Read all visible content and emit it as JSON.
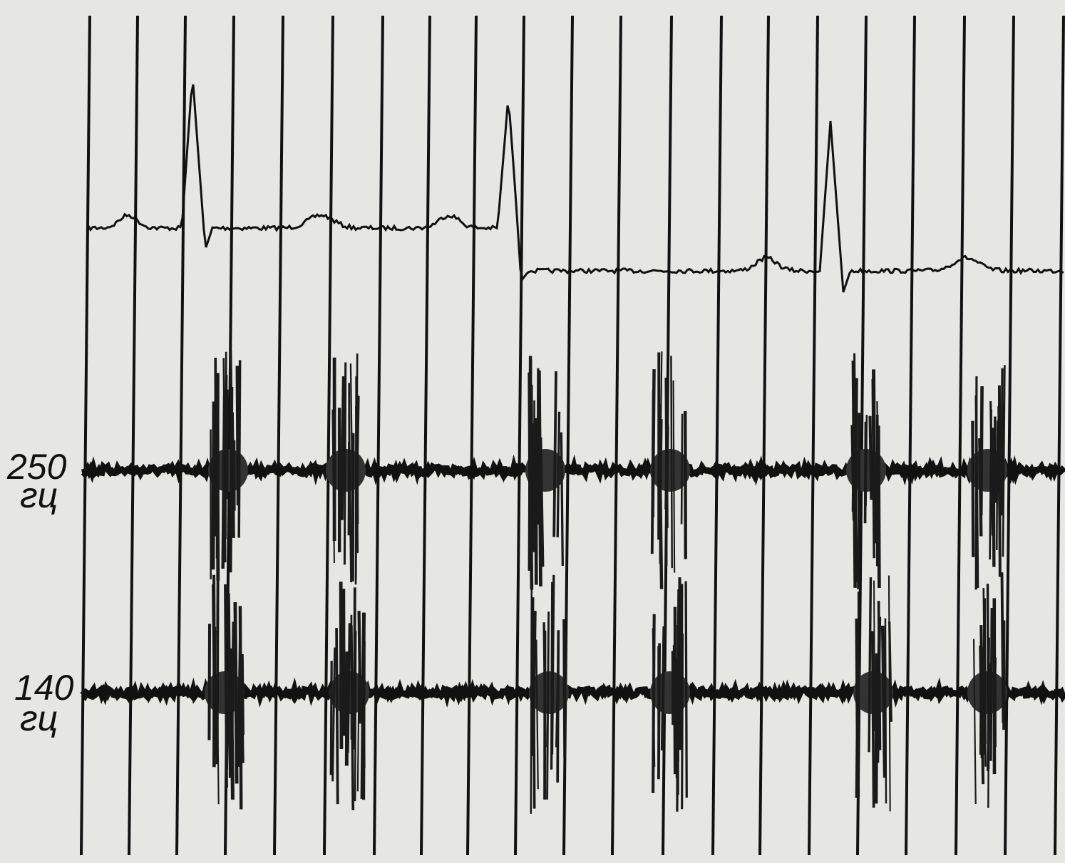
{
  "traces": [
    {
      "label": "250",
      "unit": "гц"
    },
    {
      "label": "140",
      "unit": "гц"
    }
  ]
}
